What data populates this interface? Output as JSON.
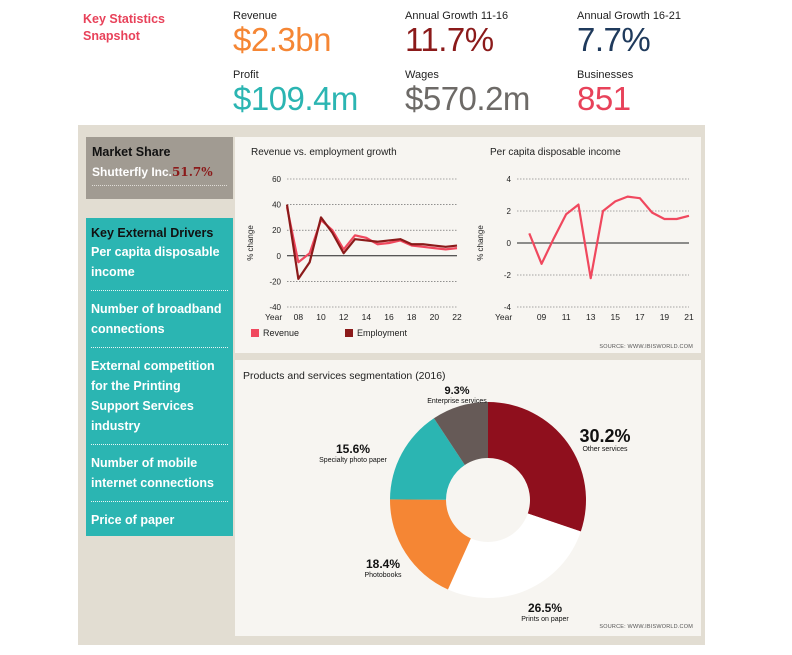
{
  "snapshot_title": "Key Statistics Snapshot",
  "kpis": {
    "revenue": {
      "label": "Revenue",
      "value": "$2.3bn",
      "color": "#f58634"
    },
    "growth_11_16": {
      "label": "Annual Growth 11-16",
      "value": "11.7%",
      "color": "#8b1a1a"
    },
    "growth_16_21": {
      "label": "Annual Growth 16-21",
      "value": "7.7%",
      "color": "#1f3a5c"
    },
    "profit": {
      "label": "Profit",
      "value": "$109.4m",
      "color": "#2bb5b2"
    },
    "wages": {
      "label": "Wages",
      "value": "$570.2m",
      "color": "#6d6a67"
    },
    "businesses": {
      "label": "Businesses",
      "value": "851",
      "color": "#e8425a"
    }
  },
  "market_share": {
    "title": "Market Share",
    "company": "Shutterfly Inc.",
    "pct": "51.7%"
  },
  "drivers": {
    "title": "Key External Drivers",
    "items": [
      "Per capita disposable income",
      "Number of broadband connections",
      "External competition for the Printing Support Services industry",
      "Number of mobile internet connections",
      "Price of paper"
    ]
  },
  "chart_data": [
    {
      "type": "line",
      "title": "Revenue vs. employment growth",
      "xlabel": "Year",
      "ylabel": "% change",
      "xlim": [
        2007,
        2022
      ],
      "ylim": [
        -40,
        60
      ],
      "xticks": [
        2008,
        2010,
        2012,
        2014,
        2016,
        2018,
        2020,
        2022
      ],
      "xtick_labels": [
        "08",
        "10",
        "12",
        "14",
        "16",
        "18",
        "20",
        "22"
      ],
      "yticks": [
        -40,
        -20,
        0,
        20,
        40,
        60
      ],
      "x": [
        2007,
        2008,
        2009,
        2010,
        2011,
        2012,
        2013,
        2014,
        2015,
        2016,
        2017,
        2018,
        2019,
        2020,
        2021,
        2022
      ],
      "series": [
        {
          "name": "Revenue",
          "color": "#f0485e",
          "values": [
            38,
            -5,
            2,
            28,
            20,
            5,
            16,
            14,
            9,
            10,
            12,
            8,
            7,
            6,
            5,
            6
          ]
        },
        {
          "name": "Employment",
          "color": "#8b1a1a",
          "values": [
            40,
            -18,
            -5,
            30,
            18,
            2,
            13,
            12,
            11,
            12,
            13,
            9,
            9,
            8,
            7,
            8
          ]
        }
      ]
    },
    {
      "type": "line",
      "title": "Per capita disposable income",
      "xlabel": "Year",
      "ylabel": "% change",
      "xlim": [
        2007,
        2021
      ],
      "ylim": [
        -4,
        4
      ],
      "xticks": [
        2009,
        2011,
        2013,
        2015,
        2017,
        2019,
        2021
      ],
      "xtick_labels": [
        "09",
        "11",
        "13",
        "15",
        "17",
        "19",
        "21"
      ],
      "yticks": [
        -4,
        -2,
        0,
        2,
        4
      ],
      "x": [
        2008,
        2009,
        2010,
        2011,
        2012,
        2013,
        2014,
        2015,
        2016,
        2017,
        2018,
        2019,
        2020,
        2021
      ],
      "series": [
        {
          "name": "Per capita disposable income",
          "color": "#f0485e",
          "values": [
            0.6,
            -1.3,
            0.3,
            1.8,
            2.4,
            -2.2,
            2.0,
            2.6,
            2.9,
            2.8,
            1.9,
            1.5,
            1.5,
            1.7
          ]
        }
      ]
    },
    {
      "type": "pie",
      "title": "Products and services segmentation",
      "subtitle": "(2016)",
      "slices": [
        {
          "label": "Other services",
          "value": 30.2,
          "pct_label": "30.2%",
          "color": "#8f0f1d"
        },
        {
          "label": "Prints on paper",
          "value": 26.5,
          "pct_label": "26.5%",
          "color": "#ffffff"
        },
        {
          "label": "Photobooks",
          "value": 18.4,
          "pct_label": "18.4%",
          "color": "#f58634"
        },
        {
          "label": "Specialty photo paper",
          "value": 15.6,
          "pct_label": "15.6%",
          "color": "#2bb5b2"
        },
        {
          "label": "Enterprise services",
          "value": 9.3,
          "pct_label": "9.3%",
          "color": "#665a57"
        }
      ]
    }
  ],
  "sources": {
    "top": "SOURCE: WWW.IBISWORLD.COM",
    "bottom": "SOURCE: WWW.IBISWORLD.COM"
  },
  "colors": {
    "panel": "#e2ddd2",
    "card": "#f7f5f1",
    "teal": "#2bb5b2",
    "grey_box": "#a19b92",
    "axis": "#222222"
  }
}
